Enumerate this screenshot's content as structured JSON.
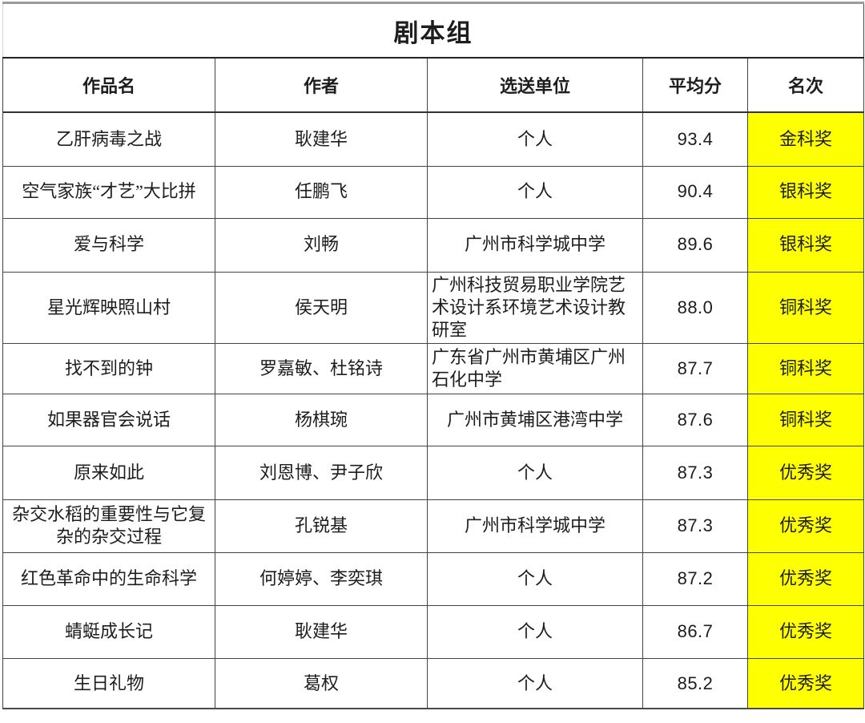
{
  "table": {
    "title": "剧本组",
    "columns": [
      "作品名",
      "作者",
      "选送单位",
      "平均分",
      "名次"
    ],
    "rows": [
      {
        "work": "乙肝病毒之战",
        "author": "耿建华",
        "unit": "个人",
        "score": "93.4",
        "award": "金科奖"
      },
      {
        "work": "空气家族“才艺”大比拼",
        "author": "任鹏飞",
        "unit": "个人",
        "score": "90.4",
        "award": "银科奖"
      },
      {
        "work": "爱与科学",
        "author": "刘畅",
        "unit": "广州市科学城中学",
        "score": "89.6",
        "award": "银科奖"
      },
      {
        "work": "星光辉映照山村",
        "author": "侯天明",
        "unit": "广州科技贸易职业学院艺术设计系环境艺术设计教研室",
        "score": "88.0",
        "award": "铜科奖"
      },
      {
        "work": "找不到的钟",
        "author": "罗嘉敏、杜铭诗",
        "unit": "广东省广州市黄埔区广州石化中学",
        "score": "87.7",
        "award": "铜科奖"
      },
      {
        "work": "如果器官会说话",
        "author": "杨棋琬",
        "unit": "广州市黄埔区港湾中学",
        "score": "87.6",
        "award": "铜科奖"
      },
      {
        "work": "原来如此",
        "author": "刘恩博、尹子欣",
        "unit": "个人",
        "score": "87.3",
        "award": "优秀奖"
      },
      {
        "work": "杂交水稻的重要性与它复杂的杂交过程",
        "author": "孔锐基",
        "unit": "广州市科学城中学",
        "score": "87.3",
        "award": "优秀奖"
      },
      {
        "work": "红色革命中的生命科学",
        "author": "何婷婷、李奕琪",
        "unit": "个人",
        "score": "87.2",
        "award": "优秀奖"
      },
      {
        "work": "蜻蜓成长记",
        "author": "耿建华",
        "unit": "个人",
        "score": "86.7",
        "award": "优秀奖"
      },
      {
        "work": "生日礼物",
        "author": "葛权",
        "unit": "个人",
        "score": "85.2",
        "award": "优秀奖"
      }
    ],
    "colors": {
      "highlight": "#feff00",
      "border": "#444444",
      "text": "#1d1d1d"
    }
  }
}
